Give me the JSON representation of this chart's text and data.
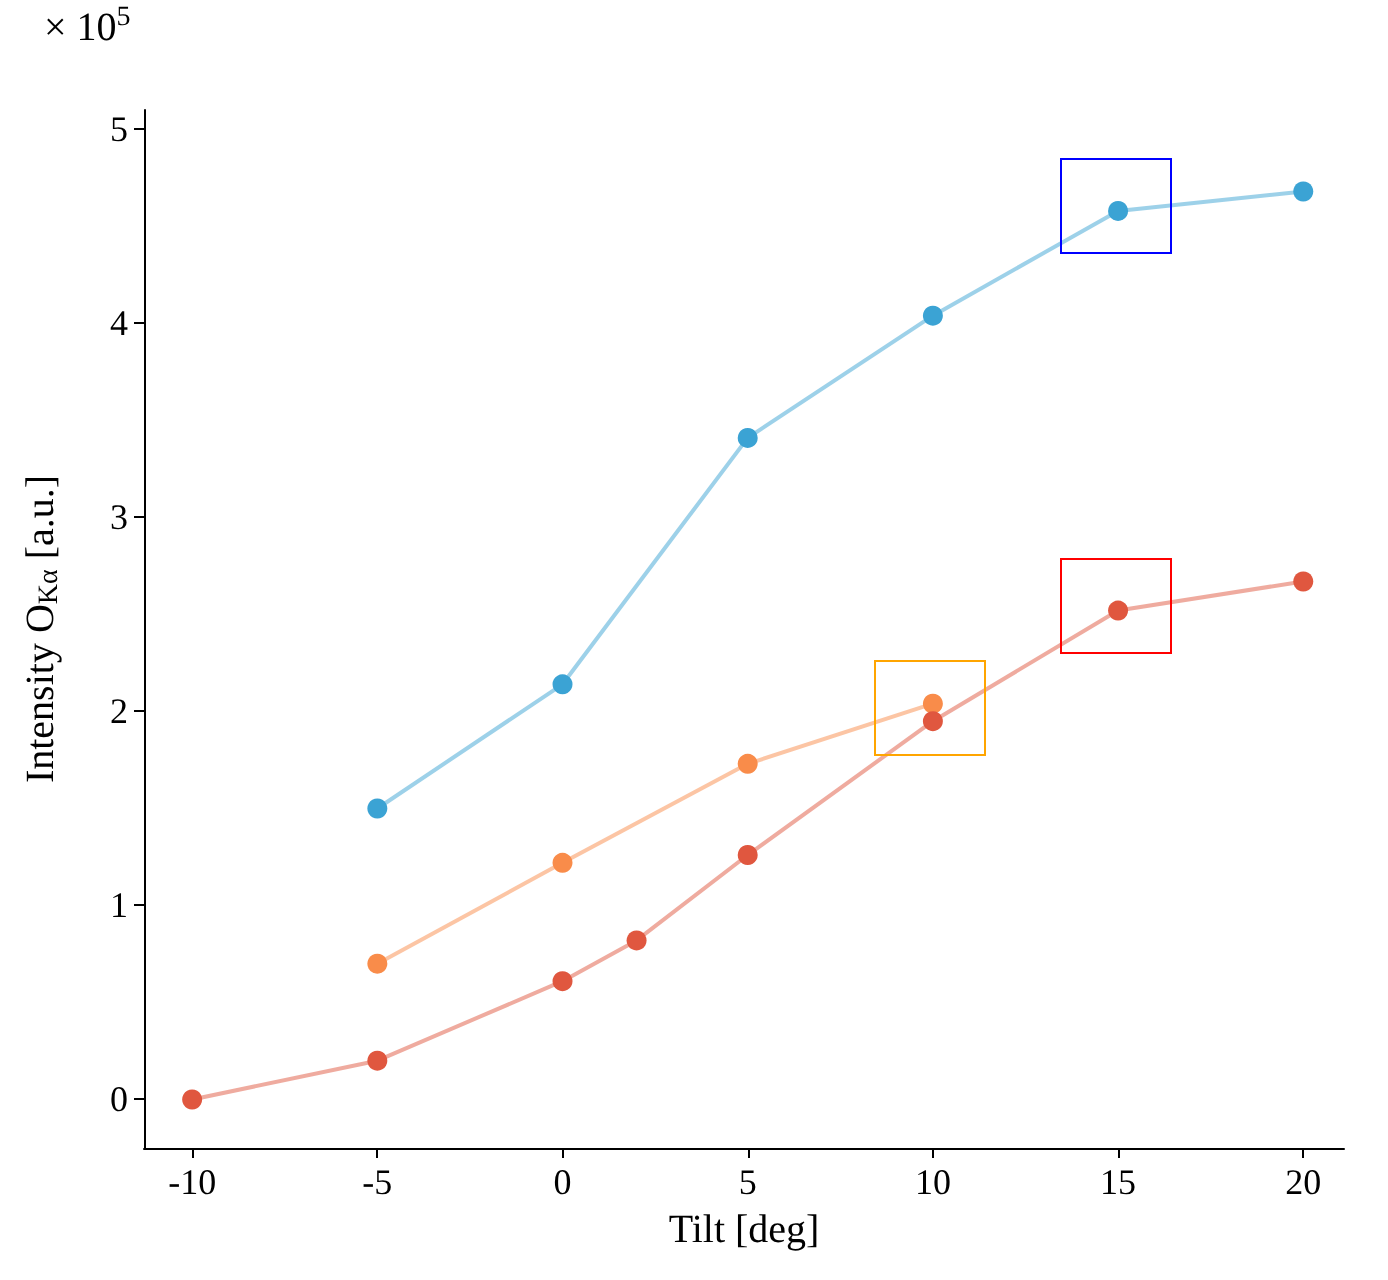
{
  "chart_data": {
    "type": "line",
    "xlabel": "Tilt [deg]",
    "ylabel": "Intensity O$_{Kα}$ [a.u.]",
    "annotations": [
      "× 10$^{5}$"
    ],
    "xlim": [
      -11.3,
      21.1
    ],
    "xticks": [
      -10,
      -5,
      0,
      5,
      10,
      15,
      20
    ],
    "ylim": [
      -0.25,
      5.1
    ],
    "yticks": [
      0,
      1,
      2,
      3,
      4,
      5
    ],
    "grid": false,
    "legend": false,
    "marker": "circle",
    "line_style": "solid",
    "series": [
      {
        "color": "#f98c4a",
        "x": [
          -5,
          0,
          5,
          10
        ],
        "values": [
          0.7,
          1.22,
          1.73,
          2.04
        ]
      },
      {
        "color": "#e0573f",
        "x": [
          -10,
          -5,
          0,
          2,
          5,
          10,
          15,
          20
        ],
        "values": [
          0,
          0.2,
          0.61,
          0.82,
          1.26,
          1.95,
          2.52,
          2.67
        ]
      },
      {
        "color": "#3ba3d4",
        "x": [
          -5,
          0,
          5,
          10,
          15,
          20
        ],
        "values": [
          1.5,
          2.14,
          3.41,
          4.04,
          4.58,
          4.68
        ]
      }
    ]
  }
}
